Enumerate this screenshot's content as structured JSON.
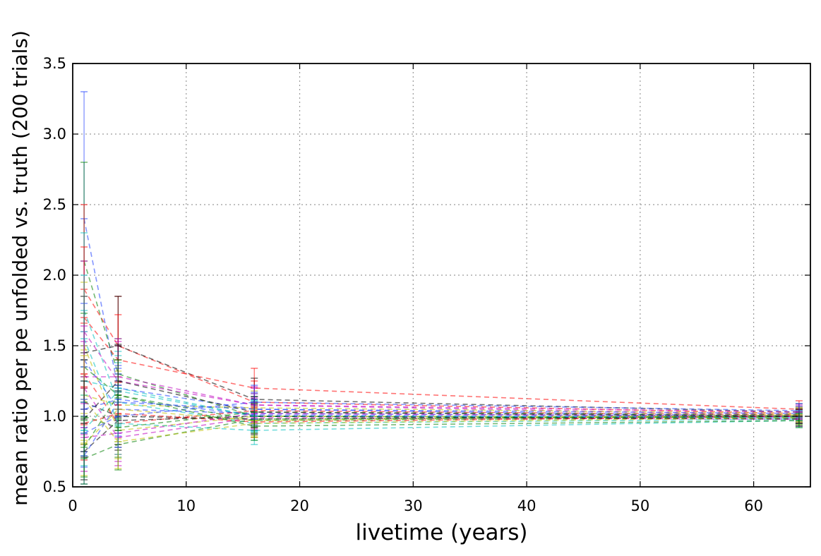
{
  "chart_data": {
    "type": "line",
    "title": "",
    "xlabel": "livetime (years)",
    "ylabel": "mean ratio per pe unfolded vs. truth (200 trials)",
    "xlim": [
      0,
      65
    ],
    "ylim": [
      0.5,
      3.5
    ],
    "xticks": [
      0,
      10,
      20,
      30,
      40,
      50,
      60
    ],
    "xtick_labels": [
      "0",
      "10",
      "20",
      "30",
      "40",
      "50",
      "60"
    ],
    "yticks": [
      0.5,
      1.0,
      1.5,
      2.0,
      2.5,
      3.0,
      3.5
    ],
    "ytick_labels": [
      "0.5",
      "1.0",
      "1.5",
      "2.0",
      "2.5",
      "3.0",
      "3.5"
    ],
    "grid": true,
    "grid_style": "dotted",
    "legend": "none",
    "line_style": "dashed",
    "trials": 200,
    "x": [
      1,
      4,
      16,
      64
    ],
    "series_colors": [
      "#1f3fff",
      "#008000",
      "#ff0000",
      "#00bfbf",
      "#bf00bf",
      "#bfbf00",
      "#000000"
    ],
    "series": [
      {
        "values": [
          2.4,
          1.2,
          1.05,
          1.0
        ],
        "err": [
          0.9,
          0.3,
          0.12,
          0.05
        ]
      },
      {
        "values": [
          2.1,
          1.3,
          1.0,
          0.99
        ],
        "err": [
          0.7,
          0.25,
          0.12,
          0.05
        ]
      },
      {
        "values": [
          1.9,
          1.5,
          1.1,
          1.02
        ],
        "err": [
          0.6,
          0.35,
          0.15,
          0.05
        ]
      },
      {
        "values": [
          1.75,
          1.1,
          0.95,
          0.98
        ],
        "err": [
          0.55,
          0.28,
          0.12,
          0.05
        ]
      },
      {
        "values": [
          1.6,
          1.25,
          1.08,
          1.01
        ],
        "err": [
          0.5,
          0.28,
          0.13,
          0.05
        ]
      },
      {
        "values": [
          1.5,
          0.9,
          1.0,
          1.0
        ],
        "err": [
          0.45,
          0.2,
          0.1,
          0.05
        ]
      },
      {
        "values": [
          1.45,
          1.5,
          1.12,
          1.03
        ],
        "err": [
          0.4,
          0.35,
          0.15,
          0.06
        ]
      },
      {
        "values": [
          1.4,
          1.05,
          1.02,
          1.0
        ],
        "err": [
          0.4,
          0.25,
          0.12,
          0.05
        ]
      },
      {
        "values": [
          1.35,
          1.15,
          0.97,
          0.99
        ],
        "err": [
          0.38,
          0.25,
          0.12,
          0.05
        ]
      },
      {
        "values": [
          1.3,
          0.95,
          1.04,
          1.01
        ],
        "err": [
          0.36,
          0.22,
          0.12,
          0.05
        ]
      },
      {
        "values": [
          1.25,
          1.2,
          1.0,
          1.0
        ],
        "err": [
          0.35,
          0.26,
          0.11,
          0.05
        ]
      },
      {
        "values": [
          1.2,
          0.85,
          0.99,
          0.98
        ],
        "err": [
          0.33,
          0.2,
          0.11,
          0.05
        ]
      },
      {
        "values": [
          1.15,
          1.08,
          1.06,
          1.02
        ],
        "err": [
          0.32,
          0.24,
          0.12,
          0.05
        ]
      },
      {
        "values": [
          1.1,
          1.0,
          0.98,
          1.0
        ],
        "err": [
          0.3,
          0.22,
          0.11,
          0.05
        ]
      },
      {
        "values": [
          1.05,
          1.12,
          1.01,
          0.99
        ],
        "err": [
          0.3,
          0.24,
          0.11,
          0.05
        ]
      },
      {
        "values": [
          1.0,
          0.92,
          1.03,
          1.01
        ],
        "err": [
          0.28,
          0.21,
          0.11,
          0.05
        ]
      },
      {
        "values": [
          0.95,
          1.02,
          0.96,
          1.0
        ],
        "err": [
          0.26,
          0.22,
          0.11,
          0.05
        ]
      },
      {
        "values": [
          0.9,
          1.18,
          1.0,
          0.99
        ],
        "err": [
          0.25,
          0.25,
          0.11,
          0.05
        ]
      },
      {
        "values": [
          0.85,
          0.88,
          1.02,
          1.0
        ],
        "err": [
          0.24,
          0.2,
          0.11,
          0.05
        ]
      },
      {
        "values": [
          0.8,
          1.05,
          0.97,
          1.01
        ],
        "err": [
          0.22,
          0.23,
          0.11,
          0.05
        ]
      },
      {
        "values": [
          0.75,
          0.97,
          1.0,
          0.98
        ],
        "err": [
          0.2,
          0.21,
          0.1,
          0.05
        ]
      },
      {
        "values": [
          0.72,
          1.1,
          1.05,
          1.02
        ],
        "err": [
          0.2,
          0.24,
          0.11,
          0.05
        ]
      },
      {
        "values": [
          0.7,
          0.8,
          0.98,
          1.0
        ],
        "err": [
          0.18,
          0.18,
          0.1,
          0.05
        ]
      },
      {
        "values": [
          1.7,
          1.4,
          1.2,
          1.05
        ],
        "err": [
          0.5,
          0.32,
          0.14,
          0.06
        ]
      },
      {
        "values": [
          1.55,
          0.95,
          0.9,
          0.97
        ],
        "err": [
          0.45,
          0.22,
          0.1,
          0.05
        ]
      },
      {
        "values": [
          1.28,
          1.28,
          1.08,
          1.03
        ],
        "err": [
          0.36,
          0.27,
          0.12,
          0.05
        ]
      },
      {
        "values": [
          1.12,
          0.82,
          0.95,
          0.99
        ],
        "err": [
          0.31,
          0.19,
          0.1,
          0.05
        ]
      },
      {
        "values": [
          0.98,
          1.25,
          1.03,
          1.0
        ],
        "err": [
          0.27,
          0.26,
          0.11,
          0.05
        ]
      },
      {
        "values": [
          0.88,
          1.0,
          1.1,
          1.04
        ],
        "err": [
          0.24,
          0.22,
          0.12,
          0.05
        ]
      },
      {
        "values": [
          0.78,
          1.15,
          0.93,
          0.97
        ],
        "err": [
          0.21,
          0.25,
          0.1,
          0.05
        ]
      }
    ]
  }
}
